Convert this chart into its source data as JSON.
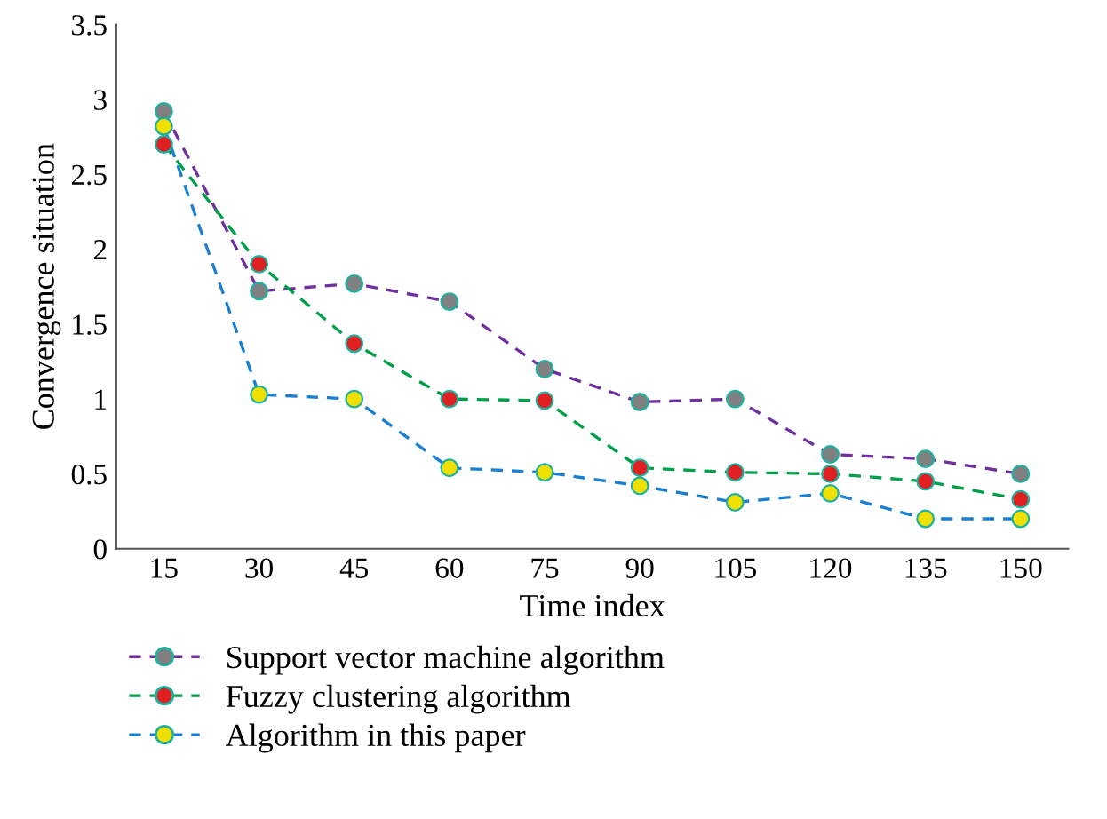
{
  "chart_data": {
    "type": "line",
    "xlabel": "Time index",
    "ylabel": "Convergence situation",
    "categories": [
      "15",
      "30",
      "45",
      "60",
      "75",
      "90",
      "105",
      "120",
      "135",
      "150"
    ],
    "ylim": [
      0,
      3.5
    ],
    "yticks": [
      0,
      0.5,
      1,
      1.5,
      2,
      2.5,
      3,
      3.5
    ],
    "grid": false,
    "legend": "bottom",
    "marker": "circle",
    "line_style": "dashed",
    "series": [
      {
        "name": "Support vector machine algorithm",
        "color": "#7030a0",
        "colors": [
          "#808080",
          "#808080",
          "#808080",
          "#808080",
          "#808080",
          "#808080",
          "#808080",
          "#808080",
          "#808080",
          "#808080"
        ],
        "values": [
          2.92,
          1.72,
          1.77,
          1.65,
          1.2,
          0.98,
          1.0,
          0.63,
          0.6,
          0.5
        ]
      },
      {
        "name": "Fuzzy clustering algorithm",
        "color": "#00a04a",
        "colors": [
          "#e02020",
          "#e02020",
          "#e02020",
          "#e02020",
          "#e02020",
          "#e02020",
          "#e02020",
          "#e02020",
          "#e02020",
          "#e02020"
        ],
        "values": [
          2.7,
          1.9,
          1.37,
          1.0,
          0.99,
          0.54,
          0.51,
          0.5,
          0.45,
          0.33
        ]
      },
      {
        "name": "Algorithm in this paper",
        "color": "#1a7fd0",
        "colors": [
          "#f0e000",
          "#f0e000",
          "#f0e000",
          "#f0e000",
          "#f0e000",
          "#f0e000",
          "#f0e000",
          "#f0e000",
          "#f0e000",
          "#f0e000"
        ],
        "values": [
          2.82,
          1.03,
          1.0,
          0.54,
          0.51,
          0.42,
          0.31,
          0.37,
          0.2,
          0.2
        ]
      }
    ]
  }
}
